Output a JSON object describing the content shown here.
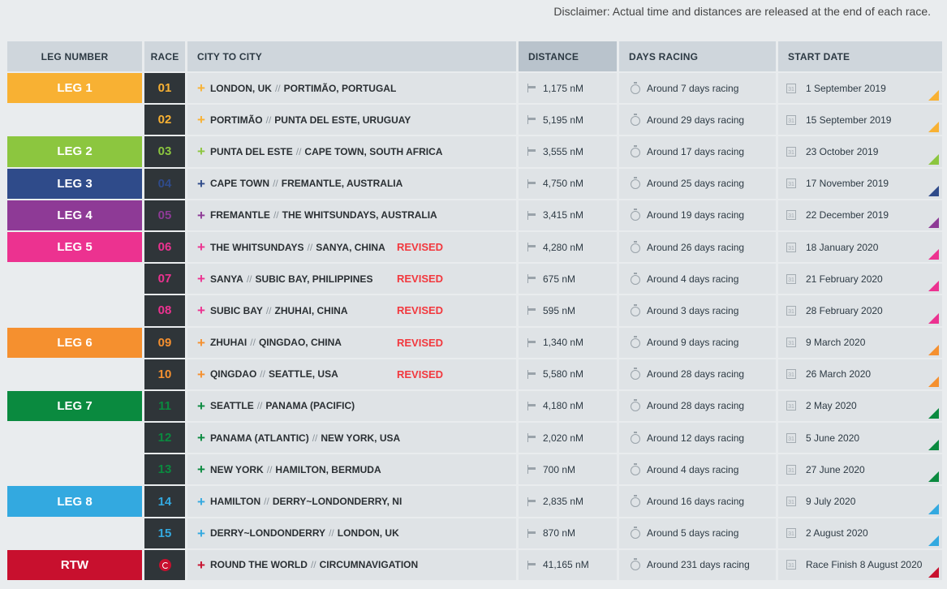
{
  "disclaimer": "Disclaimer: Actual time and distances are released at the end of each race.",
  "headers": {
    "leg": "LEG NUMBER",
    "race": "RACE",
    "city": "CITY TO CITY",
    "distance": "DISTANCE",
    "days": "DAYS RACING",
    "start": "START DATE"
  },
  "separator": "//",
  "rows": [
    {
      "leg": "LEG 1",
      "color": "#f8b133",
      "race": "01",
      "from": "LONDON, UK",
      "to": "PORTIMÃO, PORTUGAL",
      "revised": "",
      "distance": "1,175 nM",
      "days": "Around 7 days racing",
      "date": "1 September 2019"
    },
    {
      "leg": "",
      "color": "#f8b133",
      "race": "02",
      "from": "PORTIMÃO",
      "to": "PUNTA DEL ESTE, URUGUAY",
      "revised": "",
      "distance": "5,195 nM",
      "days": "Around 29 days racing",
      "date": "15 September 2019"
    },
    {
      "leg": "LEG 2",
      "color": "#8cc63f",
      "race": "03",
      "from": "PUNTA DEL ESTE",
      "to": "CAPE TOWN, SOUTH AFRICA",
      "revised": "",
      "distance": "3,555 nM",
      "days": "Around 17 days racing",
      "date": "23 October 2019"
    },
    {
      "leg": "LEG 3",
      "color": "#2f4b8a",
      "race": "04",
      "from": "CAPE TOWN",
      "to": "FREMANTLE, AUSTRALIA",
      "revised": "",
      "distance": "4,750 nM",
      "days": "Around 25 days racing",
      "date": "17 November 2019"
    },
    {
      "leg": "LEG 4",
      "color": "#8e3a96",
      "race": "05",
      "from": "FREMANTLE",
      "to": "THE WHITSUNDAYS, AUSTRALIA",
      "revised": "",
      "distance": "3,415 nM",
      "days": "Around 19 days racing",
      "date": "22 December 2019"
    },
    {
      "leg": "LEG 5",
      "color": "#ec3290",
      "race": "06",
      "from": "THE WHITSUNDAYS",
      "to": "SANYA, CHINA",
      "revised": "REVISED",
      "distance": "4,280 nM",
      "days": "Around 26 days racing",
      "date": "18 January 2020"
    },
    {
      "leg": "",
      "color": "#ec3290",
      "race": "07",
      "from": "SANYA",
      "to": "SUBIC BAY, PHILIPPINES",
      "revised": "REVISED",
      "distance": "675 nM",
      "days": "Around 4 days racing",
      "date": "21 February 2020"
    },
    {
      "leg": "",
      "color": "#ec3290",
      "race": "08",
      "from": "SUBIC BAY",
      "to": "ZHUHAI, CHINA",
      "revised": "REVISED",
      "distance": "595 nM",
      "days": "Around 3 days racing",
      "date": "28 February 2020"
    },
    {
      "leg": "LEG 6",
      "color": "#f5902f",
      "race": "09",
      "from": "ZHUHAI",
      "to": "QINGDAO, CHINA",
      "revised": "REVISED",
      "distance": "1,340 nM",
      "days": "Around 9 days racing",
      "date": "9 March 2020"
    },
    {
      "leg": "",
      "color": "#f5902f",
      "race": "10",
      "from": "QINGDAO",
      "to": "SEATTLE, USA",
      "revised": "REVISED",
      "distance": "5,580 nM",
      "days": "Around 28 days racing",
      "date": "26 March 2020"
    },
    {
      "leg": "LEG 7",
      "color": "#0a8a3f",
      "race": "11",
      "from": "SEATTLE",
      "to": "PANAMA (PACIFIC)",
      "revised": "",
      "distance": "4,180 nM",
      "days": "Around 28 days racing",
      "date": "2 May 2020"
    },
    {
      "leg": "",
      "color": "#0a8a3f",
      "race": "12",
      "from": "PANAMA (ATLANTIC)",
      "to": "NEW YORK, USA",
      "revised": "",
      "distance": "2,020 nM",
      "days": "Around 12 days racing",
      "date": "5 June 2020"
    },
    {
      "leg": "",
      "color": "#0a8a3f",
      "race": "13",
      "from": "NEW YORK",
      "to": "HAMILTON, BERMUDA",
      "revised": "",
      "distance": "700 nM",
      "days": "Around 4 days racing",
      "date": "27 June 2020"
    },
    {
      "leg": "LEG 8",
      "color": "#33a9e0",
      "race": "14",
      "from": "HAMILTON",
      "to": "DERRY~LONDONDERRY, NI",
      "revised": "",
      "distance": "2,835 nM",
      "days": "Around 16 days racing",
      "date": "9 July 2020"
    },
    {
      "leg": "",
      "color": "#33a9e0",
      "race": "15",
      "from": "DERRY~LONDONDERRY",
      "to": "LONDON, UK",
      "revised": "",
      "distance": "870 nM",
      "days": "Around 5 days racing",
      "date": "2 August 2020"
    },
    {
      "leg": "RTW",
      "color": "#c8102e",
      "race": "",
      "race_icon": "round-the-world-icon",
      "from": "ROUND THE WORLD",
      "to": "CIRCUMNAVIGATION",
      "revised": "",
      "distance": "41,165 nM",
      "days": "Around 231 days racing",
      "date": "Race Finish 8 August 2020"
    }
  ],
  "icons": {
    "distance": "flag-icon",
    "days": "stopwatch-icon",
    "date": "calendar-icon",
    "calendar_glyph": "31"
  }
}
